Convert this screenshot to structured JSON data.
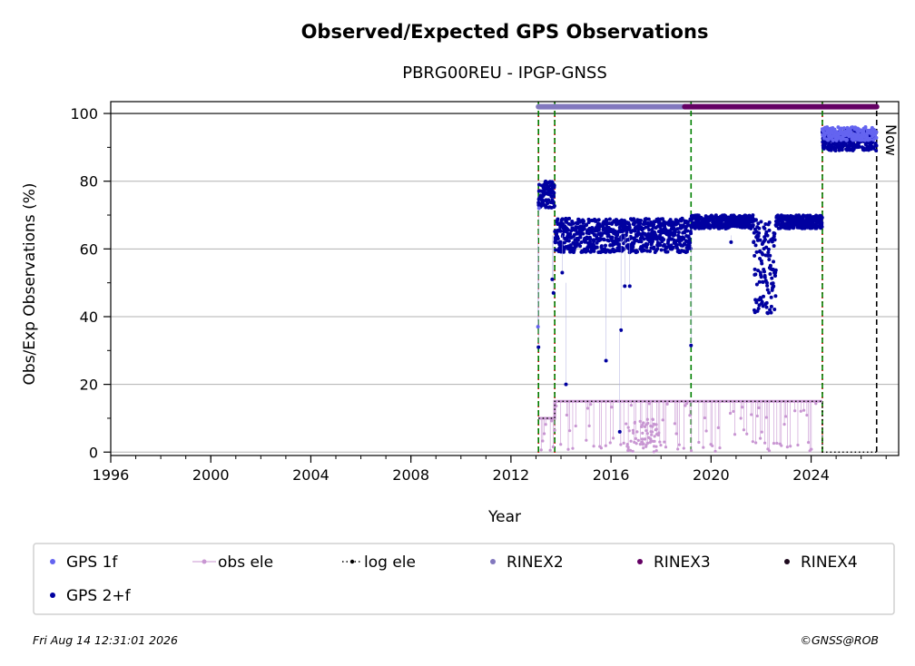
{
  "chart_data": {
    "type": "scatter",
    "title": "Observed/Expected GPS Observations",
    "subtitle": "PBRG00REU - IPGP-GNSS",
    "xlabel": "Year",
    "ylabel": "Obs/Exp Observations (%)",
    "xlim": [
      1996,
      2027.5
    ],
    "ylim": [
      -1,
      103.5
    ],
    "x_ticks": [
      1996,
      2000,
      2004,
      2008,
      2012,
      2016,
      2020,
      2024
    ],
    "y_ticks": [
      0,
      20,
      40,
      60,
      80,
      100
    ],
    "grid": "horizontal",
    "now_label": "Now",
    "now_x": 2026.62,
    "equipment_change_lines": [
      2013.1,
      2013.75,
      2019.2,
      2024.45
    ],
    "legend": {
      "placement": "bottom",
      "items": [
        {
          "key": "gps1f",
          "label": "GPS 1f",
          "color": "#6464f0"
        },
        {
          "key": "obsele",
          "label": "obs ele",
          "color": "#c896d2"
        },
        {
          "key": "logele",
          "label": "log ele",
          "color": "#000000"
        },
        {
          "key": "rinex2",
          "label": "RINEX2",
          "color": "#8278be"
        },
        {
          "key": "rinex3",
          "label": "RINEX3",
          "color": "#640064"
        },
        {
          "key": "rinex4",
          "label": "RINEX4",
          "color": "#1e0a1e"
        },
        {
          "key": "gps2f",
          "label": "GPS 2+f",
          "color": "#0000a0"
        }
      ]
    },
    "rinex_bars": [
      {
        "name": "RINEX2",
        "x_start": 2013.1,
        "x_end": 2018.95,
        "y": 102,
        "color": "#8278be"
      },
      {
        "name": "RINEX3",
        "x_start": 2018.95,
        "x_end": 2026.62,
        "y": 102,
        "color": "#640064"
      }
    ],
    "series": [
      {
        "name": "GPS 2+f",
        "color": "#0000a0",
        "segments": [
          {
            "x_start": 2013.1,
            "x_end": 2013.75,
            "y_base": 76,
            "y_spread": 4
          },
          {
            "x_start": 2013.75,
            "x_end": 2019.2,
            "y_base": 64,
            "y_spread": 5
          },
          {
            "x_start": 2019.2,
            "x_end": 2021.7,
            "y_base": 68,
            "y_spread": 2
          },
          {
            "x_start": 2021.7,
            "x_end": 2022.6,
            "y_base": 55,
            "y_spread": 14
          },
          {
            "x_start": 2022.6,
            "x_end": 2024.45,
            "y_base": 68,
            "y_spread": 2
          },
          {
            "x_start": 2024.45,
            "x_end": 2026.62,
            "y_base": 92,
            "y_spread": 3
          }
        ],
        "outliers": [
          [
            2013.1,
            31
          ],
          [
            2013.7,
            47
          ],
          [
            2013.65,
            51
          ],
          [
            2014.05,
            53
          ],
          [
            2014.2,
            20
          ],
          [
            2015.8,
            27
          ],
          [
            2016.4,
            36
          ],
          [
            2016.55,
            49
          ],
          [
            2016.75,
            49
          ],
          [
            2016.35,
            6
          ],
          [
            2019.2,
            31.5
          ],
          [
            2020.8,
            62
          ]
        ]
      },
      {
        "name": "GPS 1f",
        "color": "#6464f0",
        "segments": [
          {
            "x_start": 2024.45,
            "x_end": 2026.62,
            "y_base": 94,
            "y_spread": 2
          }
        ],
        "outliers": [
          [
            2013.08,
            37
          ],
          [
            2013.12,
            72
          ]
        ]
      },
      {
        "name": "obs ele",
        "color": "#c896d2",
        "step": [
          [
            2013.1,
            10
          ],
          [
            2013.75,
            15
          ],
          [
            2024.45,
            15
          ]
        ]
      },
      {
        "name": "log ele",
        "color": "#000000",
        "step": [
          [
            2013.1,
            10
          ],
          [
            2013.75,
            15
          ],
          [
            2024.45,
            0
          ],
          [
            2026.62,
            0
          ]
        ]
      }
    ]
  },
  "footer": {
    "timestamp": "Fri Aug 14 12:31:01 2026",
    "credit": "©GNSS@ROB"
  }
}
